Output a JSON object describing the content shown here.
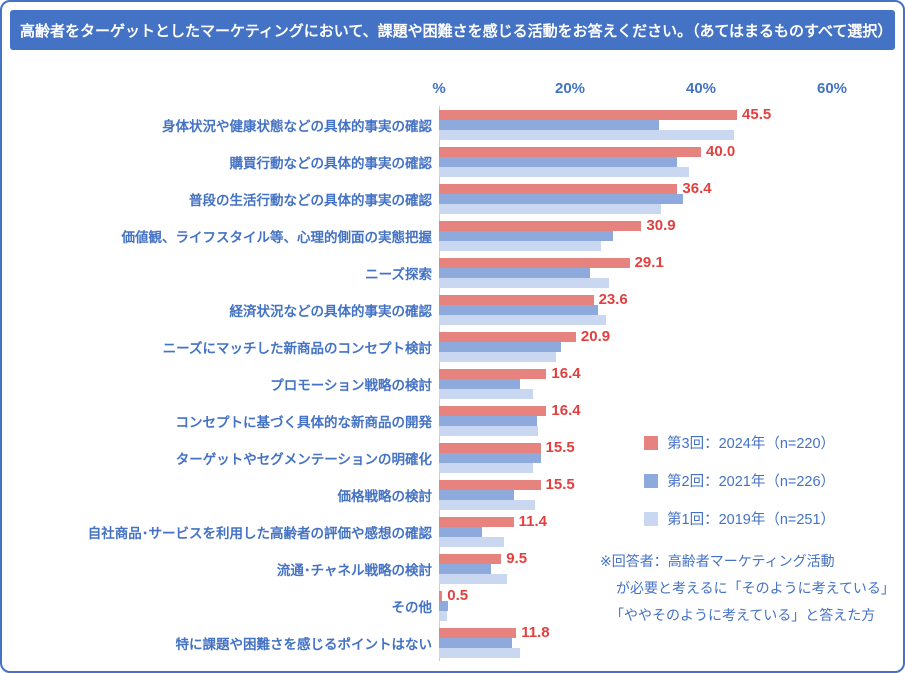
{
  "title": "高齢者をターゲットとしたマーケティングにおいて、課題や困難さを感じる活動をお答えください。（あてはまるものすべて選択）",
  "chart_data": {
    "type": "bar",
    "orientation": "horizontal",
    "xlim": [
      0,
      60
    ],
    "x_ticks": [
      "%",
      "20%",
      "40%",
      "60%"
    ],
    "grid": false,
    "legend_position": "right-middle",
    "value_label_color": "#E23F3F",
    "categories": [
      "身体状況や健康状態などの具体的事実の確認",
      "購買行動などの具体的事実の確認",
      "普段の生活行動などの具体的事実の確認",
      "価値観、ライフスタイル等、心理的側面の実態把握",
      "ニーズ探索",
      "経済状況などの具体的事実の確認",
      "ニーズにマッチした新商品のコンセプト検討",
      "プロモーション戦略の検討",
      "コンセプトに基づく具体的な新商品の開発",
      "ターゲットやセグメンテーションの明確化",
      "価格戦略の検討",
      "自社商品･サービスを利用した高齢者の評価や感想の確認",
      "流通･チャネル戦略の検討",
      "その他",
      "特に課題や困難さを感じるポイントはない"
    ],
    "series": [
      {
        "key": "2024",
        "name": "第3回：2024年（n=220）",
        "color": "#E7837F",
        "labels_shown": true,
        "values": [
          45.5,
          40.0,
          36.4,
          30.9,
          29.1,
          23.6,
          20.9,
          16.4,
          16.4,
          15.5,
          15.5,
          11.4,
          9.5,
          0.5,
          11.8
        ]
      },
      {
        "key": "2021",
        "name": "第2回：2021年（n=226）",
        "color": "#8EA9DB",
        "labels_shown": false,
        "values": [
          33.6,
          36.3,
          37.2,
          26.5,
          23.0,
          24.3,
          18.6,
          12.4,
          15.0,
          15.5,
          11.5,
          6.6,
          8.0,
          1.3,
          11.1
        ]
      },
      {
        "key": "2019",
        "name": "第1回：2019年（n=251）",
        "color": "#C9D7F0",
        "labels_shown": false,
        "values": [
          45.0,
          38.2,
          33.9,
          24.7,
          25.9,
          25.5,
          17.9,
          14.3,
          15.1,
          14.3,
          14.7,
          10.0,
          10.4,
          1.2,
          12.4
        ]
      }
    ]
  },
  "note": {
    "lines": [
      "※回答者：高齢者マーケティング活動",
      "が必要と考えるに「そのように考えている」",
      "「ややそのように考えている」と答えた方"
    ]
  }
}
